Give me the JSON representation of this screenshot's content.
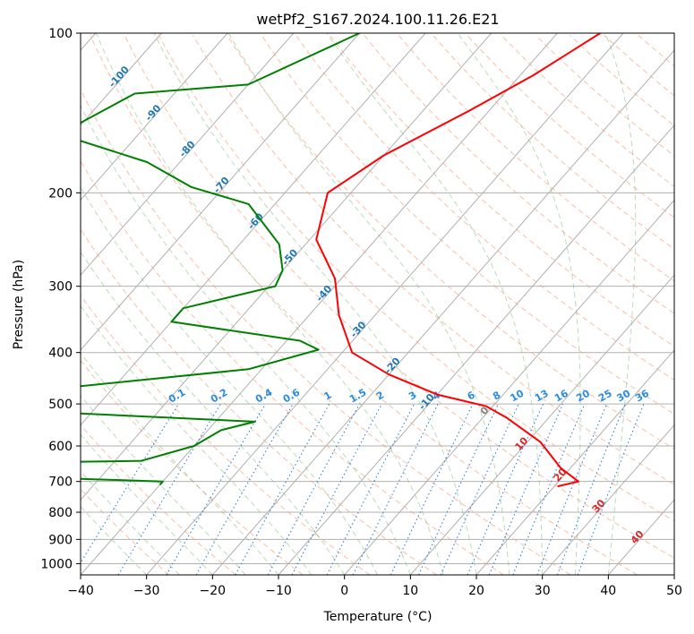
{
  "chart_data": {
    "type": "line",
    "title": "wetPf2_S167.2024.100.11.26.E21",
    "xlabel": "Temperature (°C)",
    "ylabel": "Pressure (hPa)",
    "xlim": [
      -40,
      50
    ],
    "ylim": [
      1050,
      100
    ],
    "y_scale": "log",
    "skew": true,
    "grid": true,
    "x_ticks": [
      -40,
      -30,
      -20,
      -10,
      0,
      10,
      20,
      30,
      40,
      50
    ],
    "y_ticks": [
      100,
      200,
      300,
      400,
      500,
      600,
      700,
      800,
      900,
      1000
    ],
    "series": [
      {
        "color": "#ff0000",
        "points": [
          [
            -33.5,
            100
          ],
          [
            -38,
            120
          ],
          [
            -43,
            140
          ],
          [
            -50,
            170
          ],
          [
            -53.5,
            200
          ],
          [
            -49,
            245
          ],
          [
            -41,
            290
          ],
          [
            -35.5,
            340
          ],
          [
            -28.5,
            400
          ],
          [
            -20,
            440
          ],
          [
            -10,
            480
          ],
          [
            -1,
            505
          ],
          [
            3.5,
            530
          ],
          [
            12,
            590
          ],
          [
            18.5,
            660
          ],
          [
            23,
            700
          ],
          [
            20.5,
            715
          ]
        ]
      },
      {
        "color": "#008000",
        "points": [
          [
            -70,
            100
          ],
          [
            -80,
            125
          ],
          [
            -96,
            130
          ],
          [
            -102,
            155
          ],
          [
            -85,
            175
          ],
          [
            -75,
            195
          ],
          [
            -64,
            210
          ],
          [
            -54,
            250
          ],
          [
            -50,
            280
          ],
          [
            -49,
            300
          ],
          [
            -60,
            330
          ],
          [
            -60,
            350
          ],
          [
            -38,
            380
          ],
          [
            -34,
            395
          ],
          [
            -42,
            430
          ],
          [
            -70,
            470
          ],
          [
            -84,
            490
          ],
          [
            -78,
            510
          ],
          [
            -34,
            540
          ],
          [
            -38,
            560
          ],
          [
            -40,
            600
          ],
          [
            -46,
            640
          ],
          [
            -80,
            650
          ],
          [
            -80,
            675
          ],
          [
            -70,
            680
          ],
          [
            -56,
            690
          ],
          [
            -40,
            700
          ],
          [
            -40,
            710
          ]
        ]
      }
    ],
    "annotations": {
      "mixing_ratio": [
        "0.1",
        "0.2",
        "0.4",
        "0.6",
        "1",
        "1.5",
        "2",
        "3",
        "4",
        "6",
        "8",
        "10",
        "13",
        "16",
        "20",
        "25",
        "30",
        "36"
      ],
      "moist_adiabat": [
        "-100",
        "-90",
        "-80",
        "-70",
        "-60",
        "-50",
        "-40",
        "-30",
        "-20",
        "-10",
        "0",
        "10",
        "20",
        "30",
        "40"
      ]
    }
  }
}
